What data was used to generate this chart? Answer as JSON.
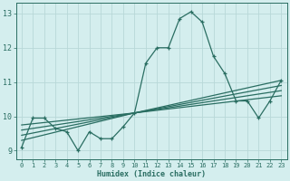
{
  "xlabel": "Humidex (Indice chaleur)",
  "xlim": [
    -0.5,
    23.5
  ],
  "ylim": [
    8.75,
    13.3
  ],
  "yticks": [
    9,
    10,
    11,
    12,
    13
  ],
  "xticks": [
    0,
    1,
    2,
    3,
    4,
    5,
    6,
    7,
    8,
    9,
    10,
    11,
    12,
    13,
    14,
    15,
    16,
    17,
    18,
    19,
    20,
    21,
    22,
    23
  ],
  "bg_color": "#d4eeee",
  "grid_color_major": "#b8d8d8",
  "grid_color_minor": "#c8e4e4",
  "line_color": "#2a6e62",
  "main_line": {
    "x": [
      0,
      1,
      2,
      3,
      4,
      5,
      6,
      7,
      8,
      9,
      10,
      11,
      12,
      13,
      14,
      15,
      16,
      17,
      18,
      19,
      20,
      21,
      22,
      23
    ],
    "y": [
      9.1,
      9.95,
      9.95,
      9.65,
      9.55,
      9.0,
      9.55,
      9.35,
      9.35,
      9.7,
      10.1,
      11.55,
      12.0,
      12.0,
      12.85,
      13.05,
      12.75,
      11.75,
      11.25,
      10.45,
      10.45,
      9.95,
      10.45,
      11.05
    ]
  },
  "trend_lines": [
    {
      "x": [
        0,
        10,
        23
      ],
      "y": [
        9.45,
        10.1,
        10.9
      ]
    },
    {
      "x": [
        0,
        10,
        23
      ],
      "y": [
        9.6,
        10.1,
        10.75
      ]
    },
    {
      "x": [
        0,
        10,
        23
      ],
      "y": [
        9.75,
        10.1,
        10.6
      ]
    },
    {
      "x": [
        0,
        10,
        23
      ],
      "y": [
        9.3,
        10.1,
        11.05
      ]
    }
  ]
}
